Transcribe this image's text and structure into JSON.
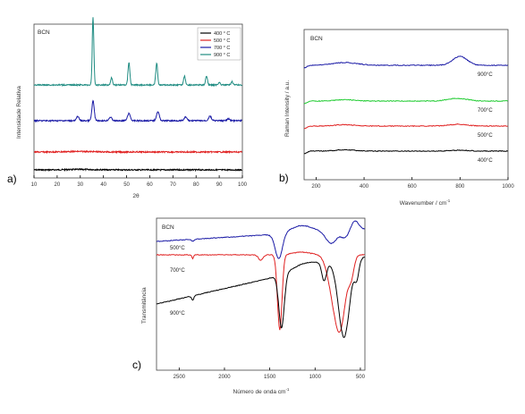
{
  "figure": {
    "colors": {
      "black": "#000000",
      "red": "#e02020",
      "blue": "#1a1aa6",
      "teal": "#1f8c82",
      "green": "#22cc33"
    }
  },
  "chart_data": [
    {
      "panel": "a)",
      "type": "line",
      "sample_label": "BCN",
      "xlabel": "2θ",
      "ylabel": "Intensidade Relativa",
      "xlim": [
        10,
        100
      ],
      "xticks": [
        10,
        20,
        30,
        40,
        50,
        60,
        70,
        80,
        90,
        100
      ],
      "grid": false,
      "legend_position": "top-right",
      "series": [
        {
          "name": "400 ° C",
          "color": "#000000",
          "offset": 0,
          "peaks": [
            [
              30,
              0.5,
              6
            ]
          ]
        },
        {
          "name": "500 ° C",
          "color": "#e02020",
          "offset": 20,
          "peaks": [
            [
              30,
              0.6,
              6
            ]
          ]
        },
        {
          "name": "700 ° C",
          "color": "#1a1aa6",
          "offset": 55,
          "peaks": [
            [
              28.9,
              5,
              0.5
            ],
            [
              35.5,
              22,
              0.5
            ],
            [
              43,
              4,
              0.6
            ],
            [
              51,
              8,
              0.6
            ],
            [
              63.5,
              10,
              0.6
            ],
            [
              75.5,
              4,
              0.6
            ],
            [
              86,
              5,
              0.6
            ],
            [
              94,
              2,
              0.6
            ]
          ]
        },
        {
          "name": "900 ° C",
          "color": "#1f8c82",
          "offset": 95,
          "peaks": [
            [
              35.5,
              75,
              0.35
            ],
            [
              43.5,
              8,
              0.4
            ],
            [
              51,
              25,
              0.4
            ],
            [
              63,
              24,
              0.4
            ],
            [
              75,
              10,
              0.4
            ],
            [
              84.5,
              10,
              0.4
            ],
            [
              90,
              3,
              0.4
            ],
            [
              95.5,
              4,
              0.4
            ]
          ]
        }
      ]
    },
    {
      "panel": "b)",
      "type": "line",
      "sample_label": "BCN",
      "xlabel": "Wavenumber / cm",
      "xlabel_superscript": "-1",
      "ylabel": "Raman Intensity / a.u.",
      "xlim": [
        150,
        1000
      ],
      "xticks": [
        200,
        400,
        600,
        800,
        1000
      ],
      "grid": false,
      "series": [
        {
          "name": "400°C",
          "color": "#000000",
          "offset": 0,
          "peaks": [
            [
              320,
              1.5,
              40
            ],
            [
              800,
              1,
              40
            ]
          ]
        },
        {
          "name": "500°C",
          "color": "#e02020",
          "offset": 28,
          "peaks": [
            [
              320,
              1.5,
              40
            ],
            [
              790,
              2,
              40
            ]
          ]
        },
        {
          "name": "700°C",
          "color": "#22cc33",
          "offset": 56,
          "peaks": [
            [
              320,
              1.5,
              40
            ],
            [
              790,
              3,
              40
            ]
          ]
        },
        {
          "name": "900°C",
          "color": "#1a1aa6",
          "offset": 96,
          "peaks": [
            [
              320,
              3,
              50
            ],
            [
              800,
              10,
              30
            ]
          ]
        }
      ]
    },
    {
      "panel": "c)",
      "type": "line",
      "sample_label": "BCN",
      "xlabel": "Número de onda cm",
      "xlabel_superscript": "-1",
      "ylabel": "Transmitância",
      "xlim": [
        2750,
        450
      ],
      "xticks": [
        2500,
        2000,
        1500,
        1000,
        500
      ],
      "grid": false,
      "series": [
        {
          "name": "500°C",
          "color": "#1a1aa6"
        },
        {
          "name": "700°C",
          "color": "#e02020"
        },
        {
          "name": "900°C",
          "color": "#000000"
        }
      ]
    }
  ]
}
